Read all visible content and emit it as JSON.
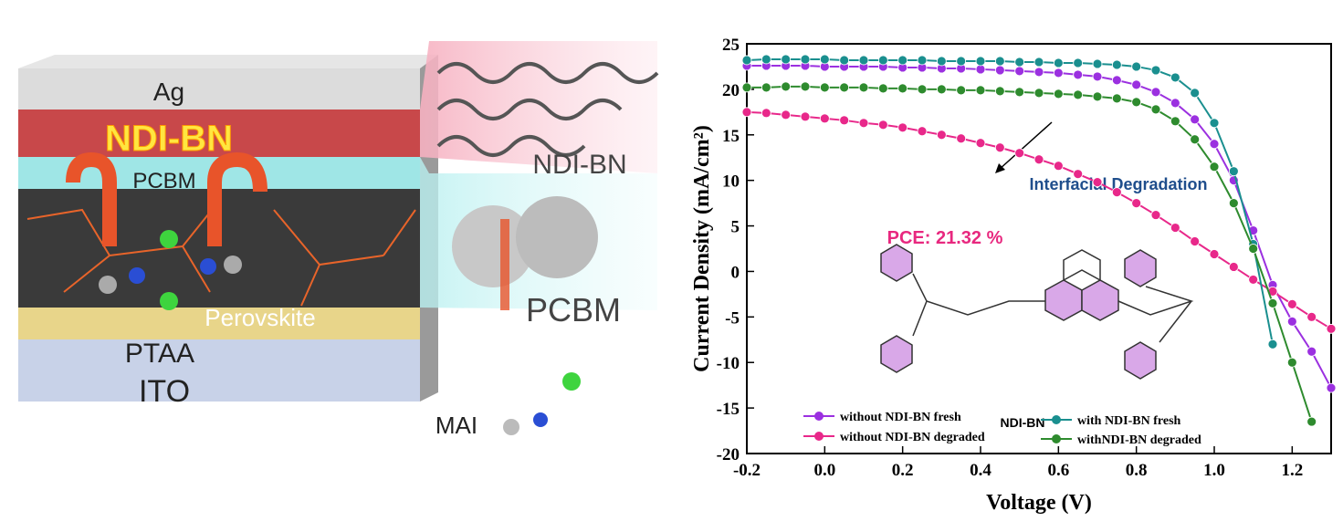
{
  "illustration": {
    "layers": [
      "Ag",
      "NDI-BN",
      "PCBM",
      "Perovskite",
      "PTAA",
      "ITO"
    ],
    "callouts": [
      "NDI-BN",
      "PCBM",
      "MAI"
    ]
  },
  "chart_data": {
    "type": "line",
    "xlabel": "Voltage (V)",
    "ylabel": "Current Density (mA/cm²)",
    "annotations": [
      "Interfacial Degradation",
      "PCE: 21.32 %",
      "NDI-BN"
    ],
    "xlim": [
      -0.2,
      1.3
    ],
    "ylim": [
      -20,
      25
    ],
    "xticks": [
      -0.2,
      {
        "value": 0,
        "label": "0.0"
      },
      0.2,
      0.4,
      0.6,
      0.8,
      {
        "value": 1,
        "label": "1.0"
      },
      1.2
    ],
    "yticks": [
      -20,
      -15,
      -10,
      -5,
      0,
      5,
      10,
      15,
      20,
      25
    ],
    "x": [
      -0.2,
      -0.15,
      -0.1,
      -0.05,
      0,
      0.05,
      0.1,
      0.15,
      0.2,
      0.25,
      0.3,
      0.35,
      0.4,
      0.45,
      0.5,
      0.55,
      0.6,
      0.65,
      0.7,
      0.75,
      0.8,
      0.85,
      0.9,
      0.95,
      1.0,
      1.05,
      1.1,
      1.15,
      1.2,
      1.25,
      1.3
    ],
    "series": [
      {
        "name": "without NDI-BN fresh",
        "color": "#9b30e0",
        "values": [
          22.6,
          22.6,
          22.6,
          22.6,
          22.5,
          22.5,
          22.5,
          22.5,
          22.4,
          22.4,
          22.3,
          22.3,
          22.2,
          22.1,
          22.0,
          21.9,
          21.8,
          21.6,
          21.4,
          21.0,
          20.5,
          19.7,
          18.5,
          16.7,
          14.0,
          10.0,
          4.5,
          -1.5,
          -5.5,
          -8.8,
          -12.8
        ]
      },
      {
        "name": "without NDI-BN degraded",
        "color": "#e8288a",
        "values": [
          17.5,
          17.4,
          17.2,
          17.0,
          16.8,
          16.6,
          16.3,
          16.1,
          15.8,
          15.4,
          15.0,
          14.6,
          14.1,
          13.6,
          13.0,
          12.3,
          11.6,
          10.7,
          9.8,
          8.7,
          7.5,
          6.2,
          4.8,
          3.3,
          1.9,
          0.5,
          -0.9,
          -2.2,
          -3.6,
          -5.0,
          -6.3
        ]
      },
      {
        "name": "with NDI-BN fresh",
        "color": "#1a8f8f",
        "values": [
          23.2,
          23.3,
          23.3,
          23.3,
          23.3,
          23.2,
          23.2,
          23.2,
          23.2,
          23.2,
          23.1,
          23.1,
          23.1,
          23.1,
          23.0,
          23.0,
          22.9,
          22.9,
          22.8,
          22.7,
          22.5,
          22.1,
          21.3,
          19.6,
          16.3,
          11.0,
          3.0,
          -8.0,
          null,
          null,
          null
        ]
      },
      {
        "name": "withNDI-BN degraded",
        "color": "#2e8b2e",
        "values": [
          20.2,
          20.2,
          20.3,
          20.3,
          20.2,
          20.2,
          20.2,
          20.1,
          20.1,
          20.0,
          20.0,
          19.9,
          19.9,
          19.8,
          19.7,
          19.6,
          19.5,
          19.4,
          19.2,
          19.0,
          18.6,
          17.8,
          16.5,
          14.5,
          11.5,
          7.5,
          2.5,
          -3.5,
          -10.0,
          -16.5,
          null
        ]
      }
    ]
  }
}
